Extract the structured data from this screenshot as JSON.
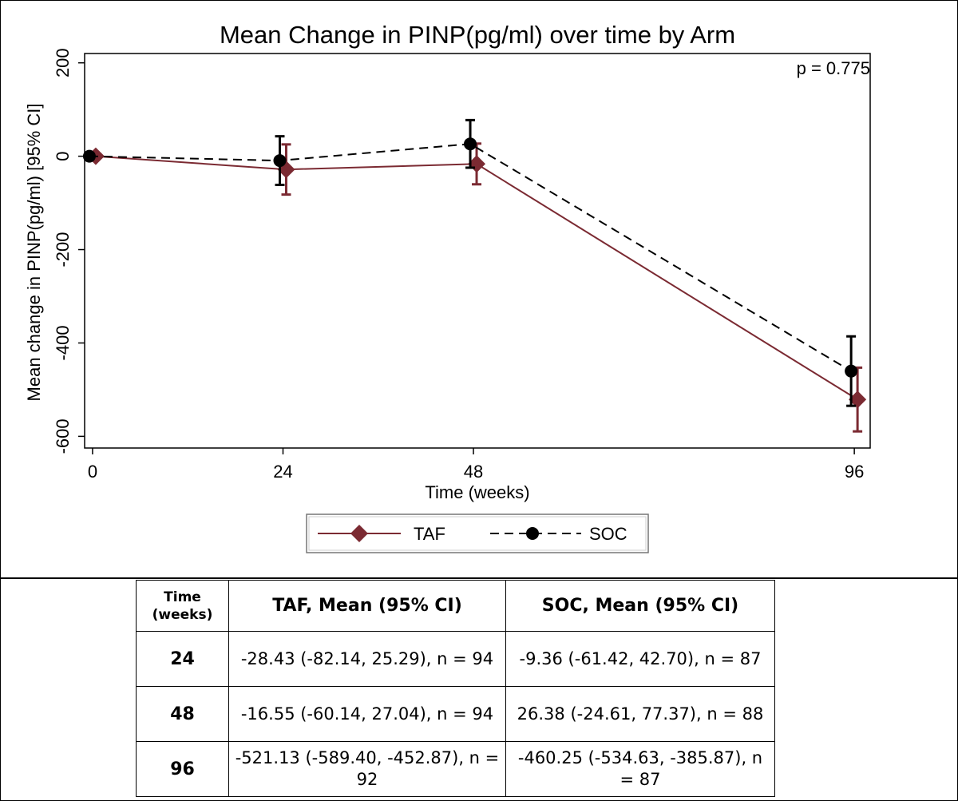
{
  "chart_data": {
    "type": "line",
    "title": "Mean Change in PINP(pg/ml) over time by Arm",
    "xlabel": "Time (weeks)",
    "ylabel": "Mean change in PINP(pg/ml) [95% CI]",
    "annotation": "p = 0.775",
    "x_ticks": [
      "0",
      "24",
      "48",
      "96"
    ],
    "y_ticks": [
      "200",
      "0",
      "-200",
      "-400",
      "-600"
    ],
    "xlim": [
      -1,
      98
    ],
    "ylim": [
      -625,
      220
    ],
    "series": [
      {
        "name": "TAF",
        "color": "#7b2a32",
        "line_style": "solid",
        "marker": "diamond",
        "x": [
          0,
          24,
          48,
          96
        ],
        "values": [
          0,
          -28.43,
          -16.55,
          -521.13
        ],
        "ci_low": [
          0,
          -82.14,
          -60.14,
          -589.4
        ],
        "ci_high": [
          0,
          25.29,
          27.04,
          -452.87
        ]
      },
      {
        "name": "SOC",
        "color": "#000000",
        "line_style": "dashed",
        "marker": "circle",
        "x": [
          0,
          24,
          48,
          96
        ],
        "values": [
          0,
          -9.36,
          26.38,
          -460.25
        ],
        "ci_low": [
          0,
          -61.42,
          -24.61,
          -534.63
        ],
        "ci_high": [
          0,
          42.7,
          77.37,
          -385.87
        ]
      }
    ],
    "legend": [
      "TAF",
      "SOC"
    ],
    "legend_position": "bottom"
  },
  "table": {
    "headers": {
      "time": "Time (weeks)",
      "taf": "TAF, Mean (95% CI)",
      "soc": "SOC, Mean (95% CI)"
    },
    "rows": [
      {
        "week": "24",
        "taf": "-28.43 (-82.14, 25.29), n = 94",
        "soc": "-9.36 (-61.42, 42.70), n = 87"
      },
      {
        "week": "48",
        "taf": "-16.55 (-60.14, 27.04), n = 94",
        "soc": "26.38 (-24.61, 77.37), n = 88"
      },
      {
        "week": "96",
        "taf": "-521.13 (-589.40, -452.87), n = 92",
        "soc": "-460.25 (-534.63, -385.87), n = 87"
      }
    ]
  }
}
